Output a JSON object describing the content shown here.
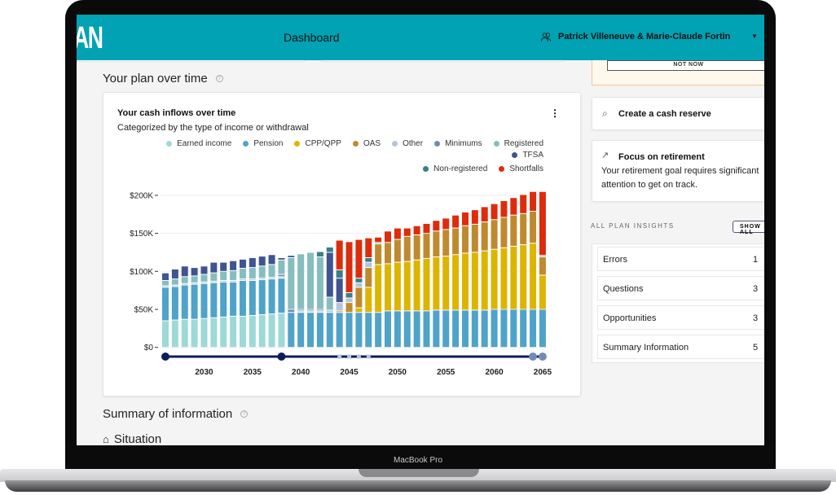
{
  "device": {
    "brand": "MacBook Pro"
  },
  "header": {
    "logo": "AN",
    "title": "Dashboard",
    "user": "Patrick Villeneuve & Marie-Claude Fortin"
  },
  "alert": {
    "not_now": "NOT NOW"
  },
  "section_plan": {
    "title": "Your plan over time"
  },
  "chart_card": {
    "title": "Your cash inflows over time",
    "subtitle": "Categorized by the type of income or withdrawal"
  },
  "section_summary": {
    "title": "Summary of information",
    "situation": "Situation"
  },
  "right": {
    "cash_reserve": "Create a cash reserve",
    "focus_title": "Focus on retirement",
    "focus_text": "Your retirement goal requires significant attention to get on track.",
    "insights_label": "ALL PLAN INSIGHTS",
    "show_all": "SHOW ALL",
    "insights": [
      {
        "label": "Errors",
        "count": "1"
      },
      {
        "label": "Questions",
        "count": "3"
      },
      {
        "label": "Opportunities",
        "count": "3"
      },
      {
        "label": "Summary Information",
        "count": "5"
      }
    ]
  },
  "chart_data": {
    "type": "bar",
    "stacked": true,
    "title": "Your cash inflows over time",
    "subtitle": "Categorized by the type of income or withdrawal",
    "ylim": [
      0,
      210
    ],
    "yticks": [
      {
        "v": 0,
        "label": "$0"
      },
      {
        "v": 50,
        "label": "$50K"
      },
      {
        "v": 100,
        "label": "$100K"
      },
      {
        "v": 150,
        "label": "$150K"
      },
      {
        "v": 200,
        "label": "$200K"
      }
    ],
    "xticks": [
      "2030",
      "2035",
      "2040",
      "2045",
      "2050",
      "2055",
      "2060",
      "2065"
    ],
    "x_start": 2026,
    "legend_position": "top",
    "units": "thousands of dollars",
    "series": [
      {
        "name": "Earned income",
        "color": "#9dd9d7",
        "values": [
          35,
          36,
          37,
          37,
          38,
          39,
          40,
          41,
          41,
          42,
          43,
          44,
          45,
          0,
          0,
          0,
          0,
          0,
          0,
          0,
          0,
          0,
          0,
          0,
          0,
          0,
          0,
          0,
          0,
          0,
          0,
          0,
          0,
          0,
          0,
          0,
          0,
          0,
          0,
          0
        ]
      },
      {
        "name": "Pension",
        "color": "#4fa3c9",
        "values": [
          44,
          44,
          45,
          46,
          46,
          46,
          46,
          45,
          47,
          46,
          46,
          46,
          46,
          46,
          46,
          46,
          46,
          46,
          46,
          46,
          46,
          46,
          46,
          48,
          48,
          48,
          48,
          48,
          49,
          49,
          49,
          49,
          49,
          49,
          50,
          50,
          50,
          50,
          50,
          50
        ]
      },
      {
        "name": "CPP/QPP",
        "color": "#dcb500",
        "values": [
          0,
          0,
          0,
          0,
          0,
          0,
          0,
          0,
          0,
          0,
          0,
          0,
          0,
          0,
          0,
          0,
          0,
          0,
          0,
          0,
          6,
          33,
          63,
          62,
          64,
          65,
          67,
          69,
          70,
          71,
          73,
          75,
          76,
          78,
          79,
          81,
          83,
          85,
          87,
          45
        ]
      },
      {
        "name": "OAS",
        "color": "#bf8a2f",
        "values": [
          0,
          0,
          0,
          0,
          0,
          0,
          0,
          0,
          0,
          0,
          0,
          0,
          0,
          0,
          0,
          0,
          0,
          0,
          2,
          13,
          27,
          26,
          27,
          28,
          30,
          33,
          33,
          33,
          34,
          35,
          35,
          36,
          37,
          38,
          39,
          40,
          41,
          41,
          42,
          24
        ]
      },
      {
        "name": "Other",
        "color": "#b4c4dd",
        "values": [
          2,
          2,
          2,
          2,
          2,
          2,
          2,
          2,
          2,
          2,
          2,
          2,
          2,
          0,
          2,
          2,
          2,
          3,
          11,
          6,
          6,
          7,
          0,
          0,
          0,
          0,
          0,
          0,
          0,
          0,
          0,
          0,
          0,
          0,
          0,
          0,
          0,
          0,
          0,
          0
        ]
      },
      {
        "name": "Minimums",
        "color": "#6f8db5",
        "values": [
          0,
          0,
          0,
          0,
          0,
          0,
          0,
          0,
          0,
          0,
          0,
          0,
          3,
          4,
          2,
          2,
          2,
          0,
          0,
          0,
          0,
          0,
          0,
          0,
          0,
          0,
          0,
          0,
          0,
          0,
          0,
          0,
          0,
          0,
          0,
          0,
          0,
          0,
          0,
          0
        ]
      },
      {
        "name": "Registered",
        "color": "#86bdbf",
        "values": [
          7,
          8,
          9,
          9,
          10,
          11,
          12,
          13,
          14,
          15,
          16,
          17,
          19,
          68,
          73,
          75,
          69,
          17,
          0,
          0,
          0,
          0,
          2,
          0,
          0,
          0,
          0,
          0,
          0,
          0,
          0,
          0,
          0,
          0,
          0,
          0,
          0,
          0,
          0,
          2
        ]
      },
      {
        "name": "TFSA",
        "color": "#3f5491",
        "values": [
          10,
          13,
          14,
          11,
          11,
          14,
          12,
          13,
          12,
          13,
          13,
          13,
          3,
          3,
          0,
          0,
          0,
          59,
          32,
          0,
          0,
          0,
          0,
          0,
          0,
          0,
          0,
          0,
          0,
          0,
          0,
          0,
          0,
          0,
          0,
          0,
          0,
          0,
          0,
          0
        ]
      },
      {
        "name": "Non-registered",
        "color": "#3a7e87",
        "values": [
          0,
          0,
          0,
          0,
          0,
          0,
          0,
          0,
          0,
          0,
          0,
          0,
          0,
          0,
          0,
          0,
          7,
          7,
          11,
          7,
          6,
          6,
          0,
          0,
          0,
          0,
          0,
          0,
          0,
          0,
          0,
          0,
          0,
          0,
          0,
          0,
          0,
          0,
          0,
          0
        ]
      },
      {
        "name": "Shortfalls",
        "color": "#dd2c0c",
        "values": [
          0,
          0,
          0,
          0,
          0,
          0,
          0,
          0,
          0,
          0,
          0,
          0,
          0,
          0,
          0,
          0,
          0,
          0,
          39,
          67,
          51,
          26,
          7,
          15,
          15,
          11,
          12,
          13,
          14,
          15,
          17,
          18,
          19,
          20,
          21,
          22,
          23,
          25,
          26,
          84
        ]
      }
    ]
  }
}
